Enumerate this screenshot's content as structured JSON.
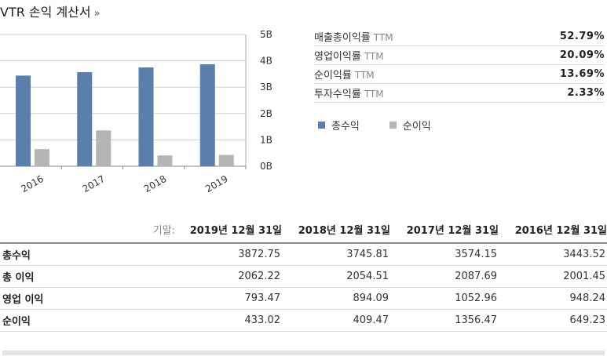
{
  "header": {
    "title": "VTR 손익 계산서",
    "more_arrow": "»"
  },
  "chart_data": {
    "type": "bar",
    "categories": [
      "2016",
      "2017",
      "2018",
      "2019"
    ],
    "series": [
      {
        "name": "총수익",
        "color": "#5b7fad",
        "values": [
          3.44,
          3.57,
          3.75,
          3.87
        ]
      },
      {
        "name": "순이익",
        "color": "#b5b5b5",
        "values": [
          0.65,
          1.36,
          0.41,
          0.43
        ]
      }
    ],
    "ylim": [
      0,
      5
    ],
    "yticks": [
      "0B",
      "1B",
      "2B",
      "3B",
      "4B",
      "5B"
    ],
    "grid": true,
    "y_axis_side": "right"
  },
  "ratios": [
    {
      "label": "매출총이익률",
      "ttm": "TTM",
      "value": "52.79%"
    },
    {
      "label": "영업이익률",
      "ttm": "TTM",
      "value": "20.09%"
    },
    {
      "label": "순이익률",
      "ttm": "TTM",
      "value": "13.69%"
    },
    {
      "label": "투자수익률",
      "ttm": "TTM",
      "value": "2.33%"
    }
  ],
  "legend": [
    {
      "label": "총수익",
      "color": "#5b7fad"
    },
    {
      "label": "순이익",
      "color": "#b5b5b5"
    }
  ],
  "financials": {
    "period_label": "기말:",
    "periods": [
      "2019년 12월 31일",
      "2018년 12월 31일",
      "2017년 12월 31일",
      "2016년 12월 31일"
    ],
    "rows": [
      {
        "label": "총수익",
        "values": [
          "3872.75",
          "3745.81",
          "3574.15",
          "3443.52"
        ]
      },
      {
        "label": "총 이익",
        "values": [
          "2062.22",
          "2054.51",
          "2087.69",
          "2001.45"
        ]
      },
      {
        "label": "영업 이익",
        "values": [
          "793.47",
          "894.09",
          "1052.96",
          "948.24"
        ]
      },
      {
        "label": "순이익",
        "values": [
          "433.02",
          "409.47",
          "1356.47",
          "649.23"
        ]
      }
    ]
  }
}
